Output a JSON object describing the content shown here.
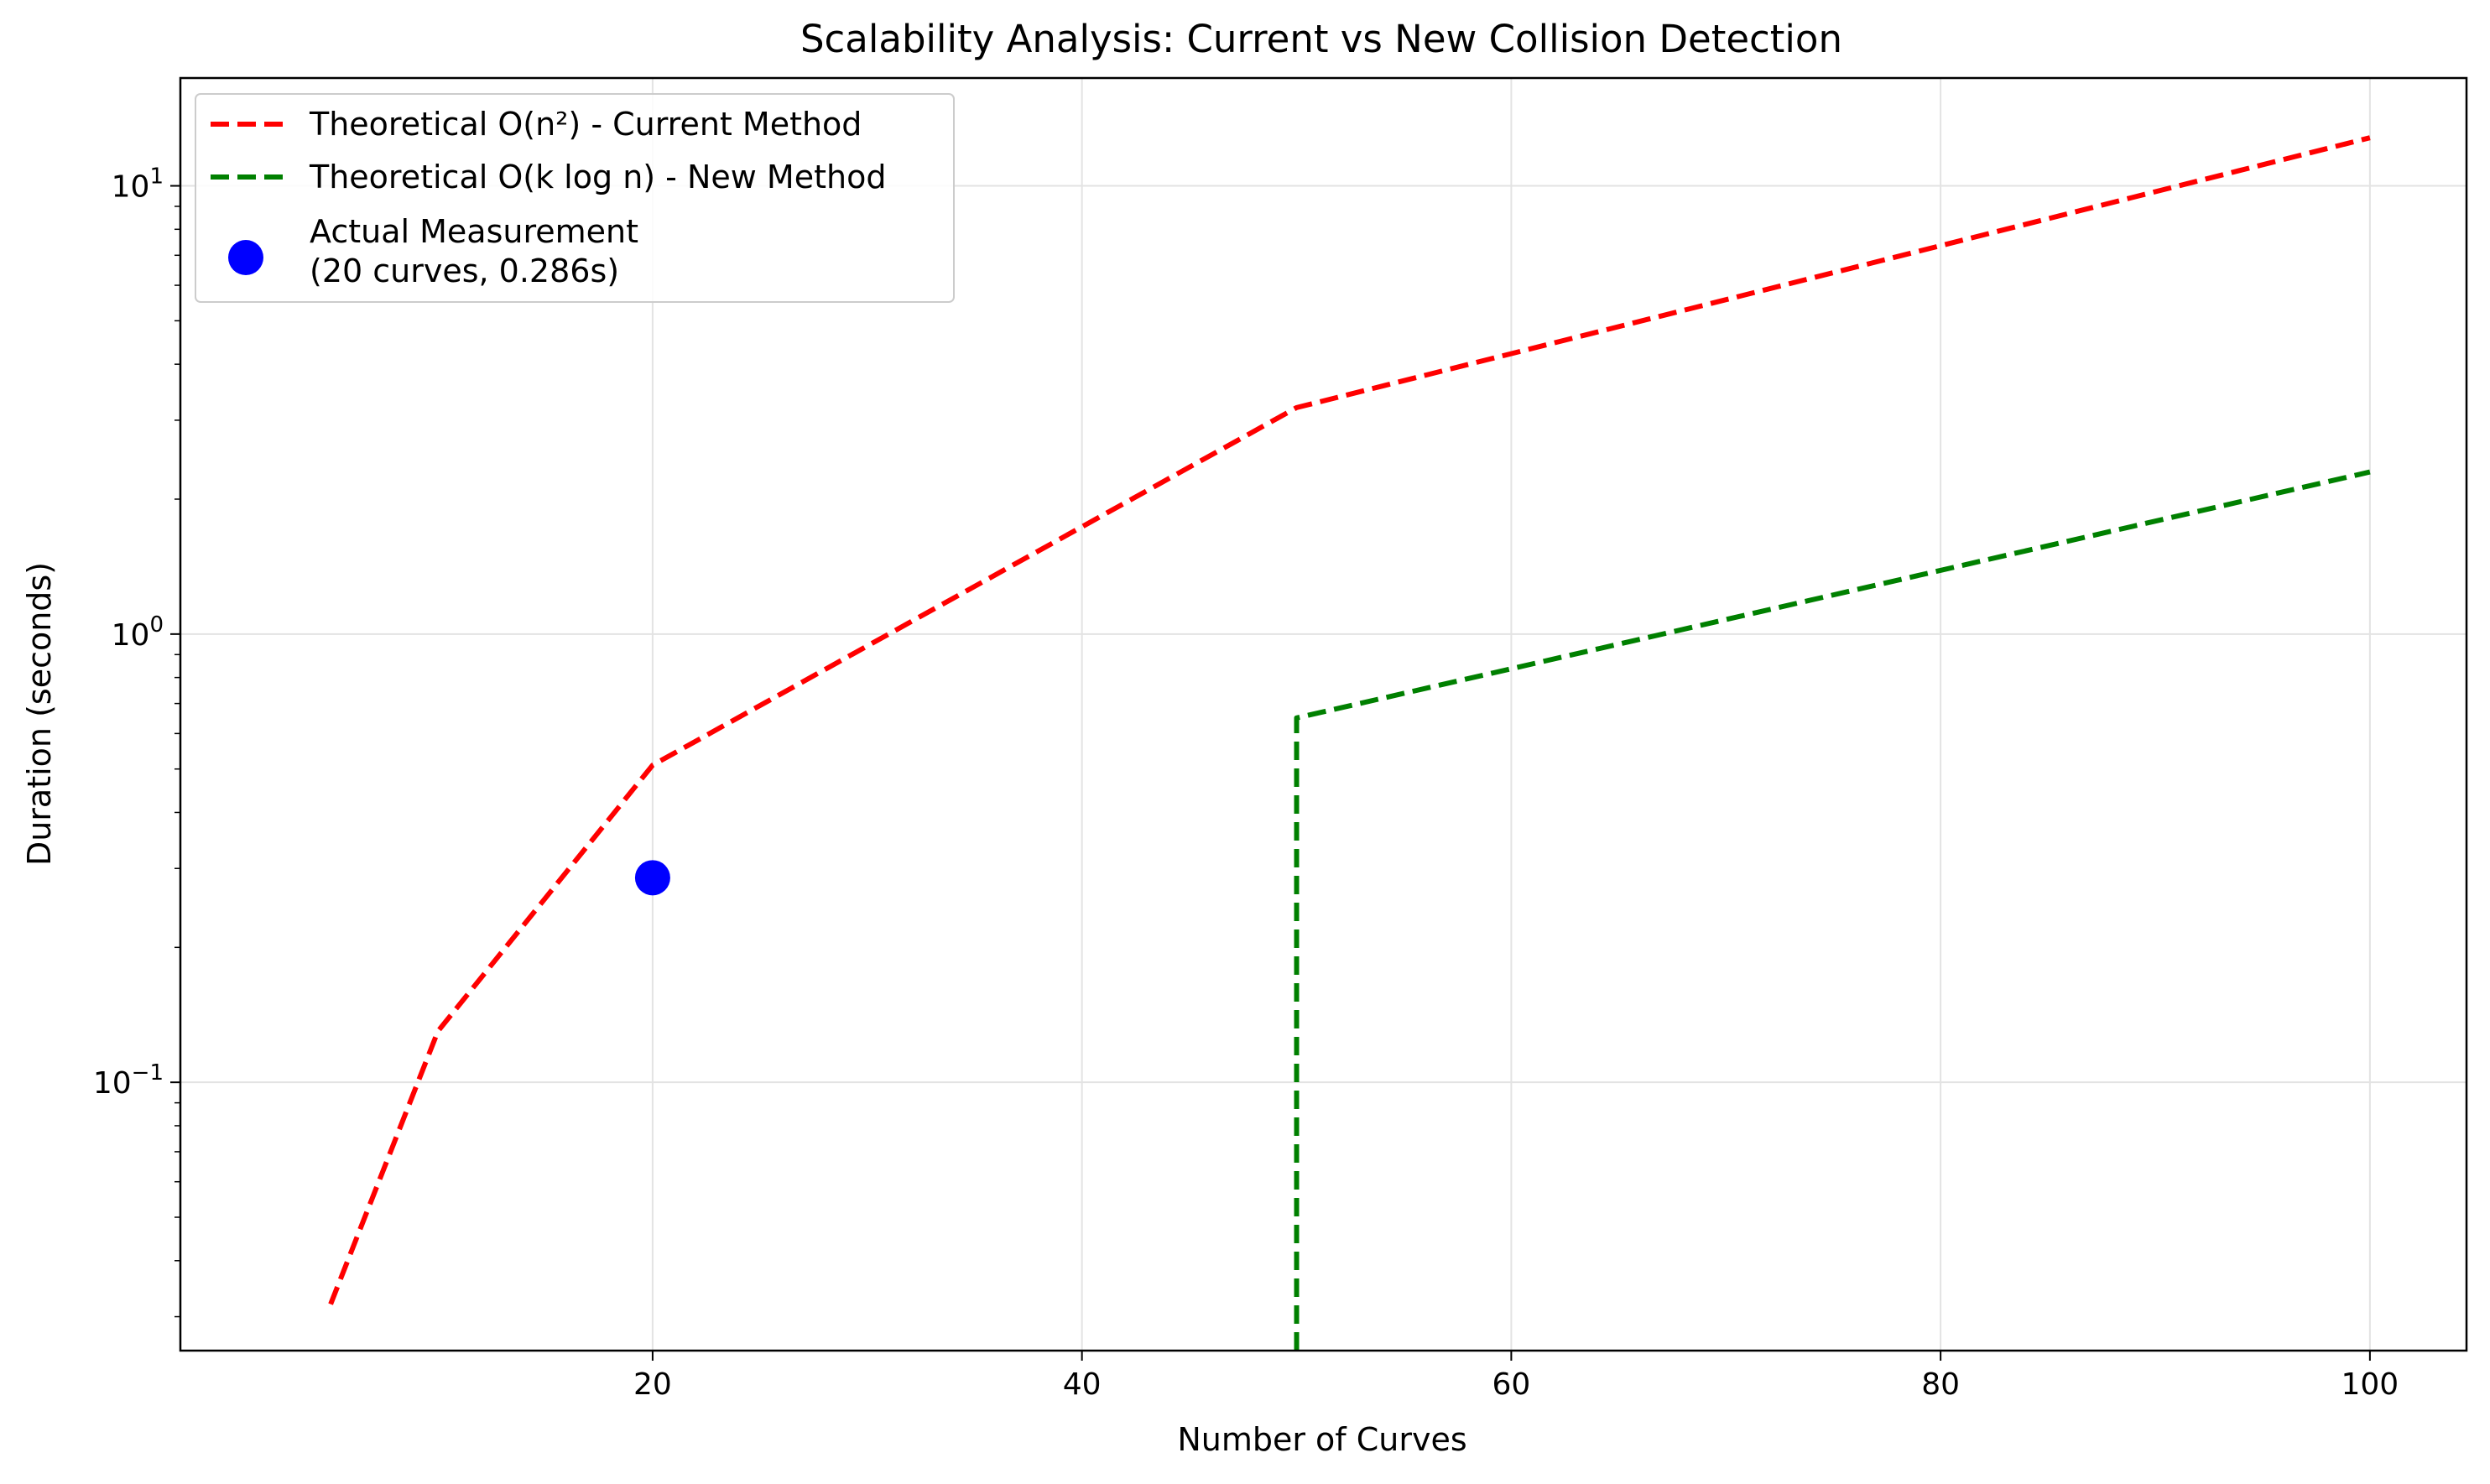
{
  "chart_data": {
    "type": "line",
    "title": "Scalability Analysis: Current vs New Collision Detection",
    "xlabel": "Number of Curves",
    "ylabel": "Duration (seconds)",
    "xscale": "linear",
    "yscale": "log",
    "xlim": [
      -2,
      104.5
    ],
    "ylim": [
      0.0252,
      17.4
    ],
    "grid": true,
    "legend_position": "upper left",
    "x_ticks": [
      {
        "value": 20,
        "label": "20"
      },
      {
        "value": 40,
        "label": "40"
      },
      {
        "value": 60,
        "label": "60"
      },
      {
        "value": 80,
        "label": "80"
      },
      {
        "value": 100,
        "label": "100"
      }
    ],
    "y_ticks": [
      {
        "value": 0.1,
        "base": "10",
        "exp": "−1"
      },
      {
        "value": 1,
        "base": "10",
        "exp": "0"
      },
      {
        "value": 10,
        "base": "10",
        "exp": "1"
      }
    ],
    "series": [
      {
        "name": "Theoretical O(n²) - Current Method",
        "color": "#ff0000",
        "style": "dashed",
        "x": [
          5,
          10,
          20,
          50,
          100
        ],
        "y": [
          0.032,
          0.13,
          0.51,
          3.2,
          12.8
        ]
      },
      {
        "name": "Theoretical O(k log n) - New Method",
        "color": "#008000",
        "style": "dashed",
        "x": [
          50,
          50,
          100
        ],
        "y": [
          0.0252,
          0.65,
          2.3
        ]
      }
    ],
    "points": [
      {
        "name_lines": [
          "Actual Measurement",
          "(20 curves, 0.286s)"
        ],
        "color": "#0000ff",
        "x": 20,
        "y": 0.286
      }
    ]
  }
}
